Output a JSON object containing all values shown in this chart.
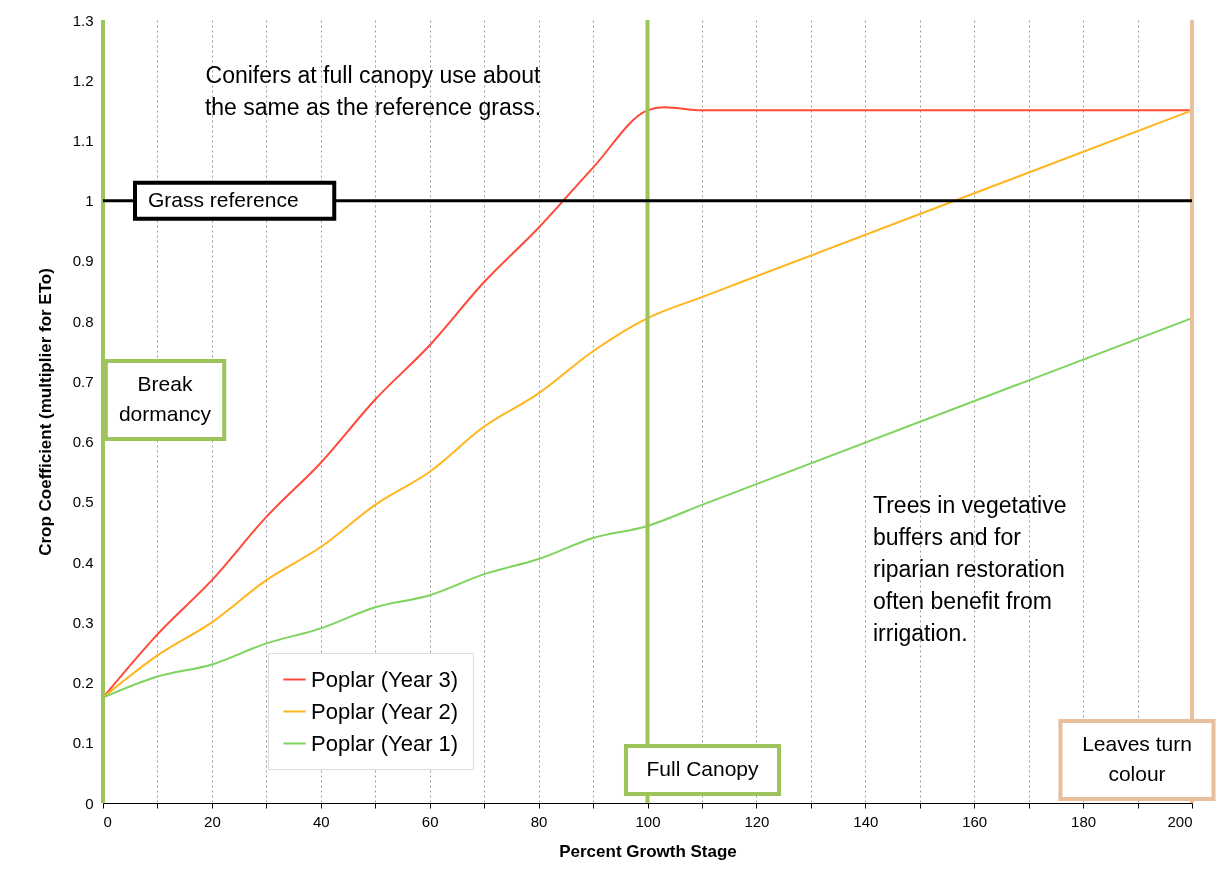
{
  "chart_data": {
    "type": "line",
    "xlabel": "Percent Growth Stage",
    "ylabel": "Crop Coefficient (multiplier for ETo)",
    "xlim": [
      0,
      200
    ],
    "ylim": [
      0,
      1.3
    ],
    "xticks": [
      0,
      {
        "value": 10,
        "label": null
      },
      20,
      {
        "value": 30,
        "label": null
      },
      40,
      {
        "value": 50,
        "label": null
      },
      60,
      {
        "value": 70,
        "label": null
      },
      80,
      {
        "value": 90,
        "label": null
      },
      100,
      {
        "value": 110,
        "label": null
      },
      120,
      {
        "value": 130,
        "label": null
      },
      140,
      {
        "value": 150,
        "label": null
      },
      160,
      {
        "value": 170,
        "label": null
      },
      180,
      {
        "value": 190,
        "label": null
      },
      200
    ],
    "yticks": [
      0,
      0.1,
      0.2,
      0.3,
      0.4,
      0.5,
      0.6,
      0.7,
      0.8,
      0.9,
      1,
      1.1,
      1.2,
      1.3
    ],
    "grid": "x",
    "legend": "bottom left",
    "series": [
      {
        "name": "Poplar (Year 3)",
        "color": "#ff4a3a",
        "x": [
          0,
          10,
          20,
          30,
          40,
          50,
          60,
          70,
          80,
          90,
          100,
          103,
          110,
          200
        ],
        "values": [
          0.175,
          0.28,
          0.37,
          0.475,
          0.565,
          0.67,
          0.76,
          0.865,
          0.955,
          1.055,
          1.15,
          1.155,
          1.15,
          1.15
        ]
      },
      {
        "name": "Poplar (Year 2)",
        "color": "#ffb51c",
        "x": [
          0,
          10,
          20,
          30,
          40,
          50,
          60,
          70,
          80,
          90,
          100,
          110,
          200
        ],
        "values": [
          0.175,
          0.245,
          0.3,
          0.37,
          0.425,
          0.495,
          0.55,
          0.625,
          0.68,
          0.75,
          0.805,
          0.84,
          1.15
        ]
      },
      {
        "name": "Poplar (Year 1)",
        "color": "#7ed35f",
        "x": [
          0,
          10,
          20,
          30,
          40,
          50,
          60,
          70,
          80,
          90,
          100,
          110,
          200
        ],
        "values": [
          0.175,
          0.21,
          0.23,
          0.265,
          0.29,
          0.325,
          0.345,
          0.38,
          0.405,
          0.44,
          0.46,
          0.495,
          0.805
        ]
      }
    ],
    "ref_lines": [
      {
        "axis": "y",
        "value": 1,
        "label": "Grass reference",
        "color": "#000000"
      },
      {
        "axis": "x",
        "value": 0,
        "label": "Break dormancy",
        "color": "#9dc45a"
      },
      {
        "axis": "x",
        "value": 100,
        "label": "Full Canopy",
        "color": "#9dc45a"
      },
      {
        "axis": "x",
        "value": 200,
        "label": "Leaves turn colour",
        "color": "#e9bf9b"
      }
    ],
    "annotations": [
      "Conifers at full canopy use about the same as the reference grass.",
      "Trees in vegetative buffers and for riparian restoration often benefit from irrigation."
    ]
  }
}
